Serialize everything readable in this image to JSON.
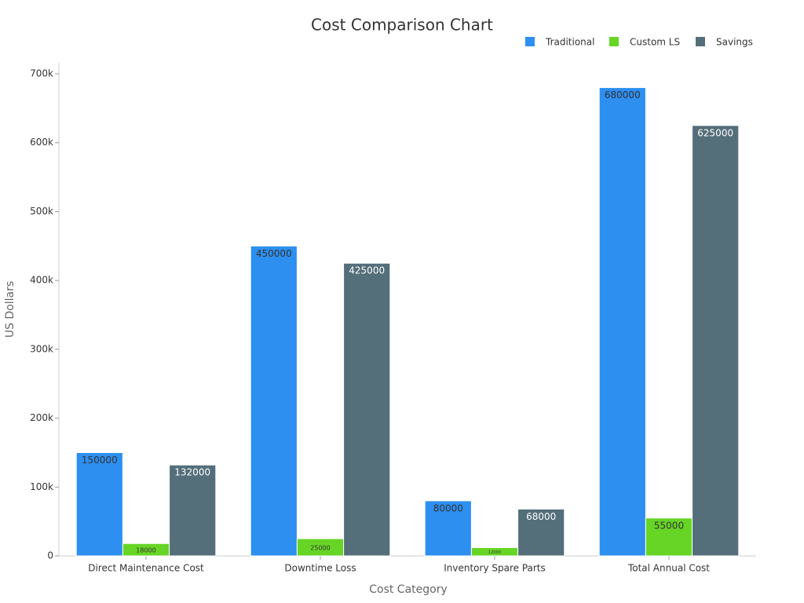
{
  "chart_data": {
    "type": "bar",
    "title": "Cost Comparison Chart",
    "x_label": "Cost Category",
    "y_label": "US Dollars",
    "categories": [
      "Direct Maintenance Cost",
      "Downtime Loss",
      "Inventory Spare Parts",
      "Total Annual Cost"
    ],
    "series": [
      {
        "name": "Traditional",
        "color": "#2d8ff0",
        "values": [
          150000,
          450000,
          80000,
          680000
        ]
      },
      {
        "name": "Custom LS",
        "color": "#66d526",
        "values": [
          18000,
          25000,
          12000,
          55000
        ]
      },
      {
        "name": "Savings",
        "color": "#546e7a",
        "values": [
          132000,
          425000,
          68000,
          625000
        ]
      }
    ],
    "ylim": [
      0,
      716000
    ],
    "yticks": [
      0,
      {
        "value": 100000,
        "label": "100k"
      },
      {
        "value": 200000,
        "label": "200k"
      },
      {
        "value": 300000,
        "label": "300k"
      },
      {
        "value": 400000,
        "label": "400k"
      },
      {
        "value": 500000,
        "label": "500k"
      },
      {
        "value": 600000,
        "label": "600k"
      },
      {
        "value": 700000,
        "label": "700k"
      }
    ],
    "legend": "top-right"
  }
}
